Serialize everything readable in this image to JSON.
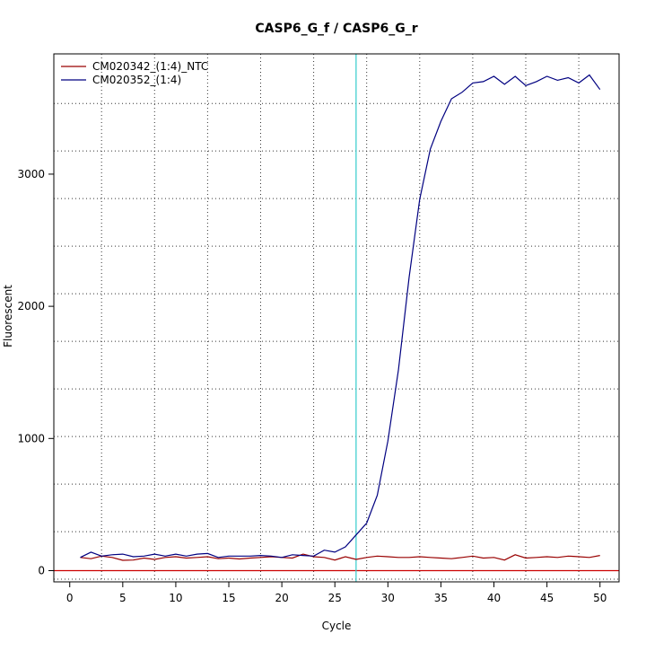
{
  "chart_data": {
    "type": "line",
    "title": "CASP6_G_f / CASP6_G_r",
    "xlabel": "Cycle",
    "ylabel": "Fluorescent",
    "xlim": [
      -1.5,
      51.8
    ],
    "ylim": [
      -85,
      3910
    ],
    "x_ticks": [
      0,
      5,
      10,
      15,
      20,
      25,
      30,
      35,
      40,
      45,
      50
    ],
    "y_ticks": [
      0,
      1000,
      2000,
      3000
    ],
    "grid": true,
    "grid_x": [
      3,
      8,
      13,
      18,
      23,
      28,
      33,
      38,
      43,
      48
    ],
    "grid_y": [
      -65,
      295,
      655,
      1015,
      1375,
      1735,
      2095,
      2455,
      2815,
      3175,
      3535
    ],
    "legend_position": "top-left",
    "threshold": {
      "y": 0,
      "color": "#cc0000"
    },
    "cycle_marker": {
      "x": 27,
      "color": "#33cccc"
    },
    "series": [
      {
        "name": "CM020342_(1:4)_NTC",
        "color": "#990000",
        "x": [
          1,
          2,
          3,
          4,
          5,
          6,
          7,
          8,
          9,
          10,
          11,
          12,
          13,
          14,
          15,
          16,
          17,
          18,
          19,
          20,
          21,
          22,
          23,
          24,
          25,
          26,
          27,
          28,
          29,
          30,
          31,
          32,
          33,
          34,
          35,
          36,
          37,
          38,
          39,
          40,
          41,
          42,
          43,
          44,
          45,
          46,
          47,
          48,
          49,
          50
        ],
        "values": [
          100,
          90,
          110,
          100,
          78,
          80,
          95,
          85,
          100,
          105,
          95,
          100,
          105,
          90,
          95,
          88,
          95,
          100,
          105,
          100,
          95,
          125,
          105,
          100,
          80,
          105,
          85,
          100,
          110,
          105,
          100,
          100,
          105,
          100,
          95,
          90,
          100,
          110,
          95,
          100,
          80,
          120,
          95,
          100,
          105,
          100,
          110,
          105,
          100,
          115
        ]
      },
      {
        "name": "CM020352_(1:4)",
        "color": "#000080",
        "x": [
          1,
          2,
          3,
          4,
          5,
          6,
          7,
          8,
          9,
          10,
          11,
          12,
          13,
          14,
          15,
          16,
          17,
          18,
          19,
          20,
          21,
          22,
          23,
          24,
          25,
          26,
          27,
          28,
          29,
          30,
          31,
          32,
          33,
          34,
          35,
          36,
          37,
          38,
          39,
          40,
          41,
          42,
          43,
          44,
          45,
          46,
          47,
          48,
          49,
          50
        ],
        "values": [
          100,
          140,
          110,
          120,
          125,
          105,
          110,
          125,
          110,
          125,
          110,
          125,
          130,
          100,
          110,
          110,
          110,
          115,
          110,
          100,
          120,
          115,
          110,
          155,
          140,
          180,
          270,
          360,
          570,
          980,
          1520,
          2220,
          2810,
          3190,
          3400,
          3570,
          3620,
          3690,
          3700,
          3740,
          3680,
          3740,
          3670,
          3700,
          3740,
          3710,
          3730,
          3690,
          3750,
          3640
        ]
      }
    ]
  }
}
